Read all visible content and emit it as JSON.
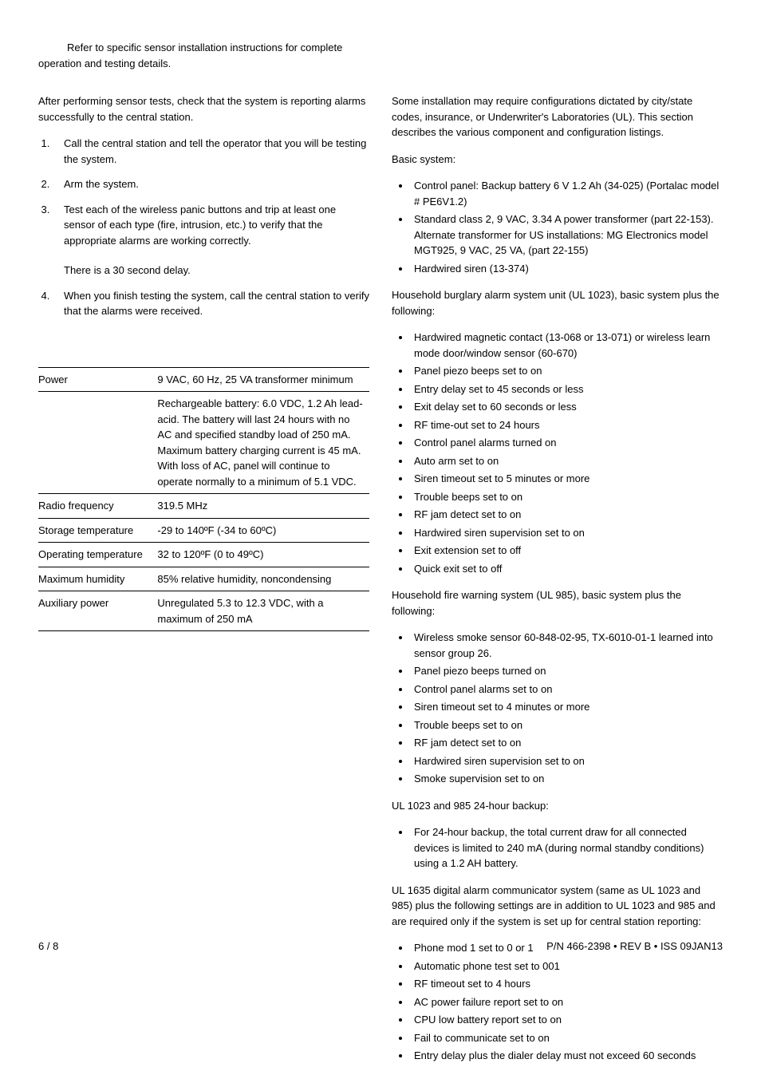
{
  "intro": {
    "line1": "Refer to specific sensor installation instructions for complete",
    "line2": "operation and testing details."
  },
  "left": {
    "p1": "After performing sensor tests, check that the system is reporting alarms successfully to the central station.",
    "steps": [
      "Call the central station and tell the operator that you will be testing the system.",
      "Arm the system.",
      "Test each of the wireless panic buttons and trip at least one sensor of each type (fire, intrusion, etc.) to verify that the appropriate alarms are working correctly.",
      "When you finish testing the system, call the central station to verify that the alarms were received."
    ],
    "delay_note": "There is a 30 second delay.",
    "spec_table": {
      "rows": [
        {
          "label": "Power",
          "value": "9 VAC, 60 Hz, 25 VA transformer minimum"
        },
        {
          "label": "",
          "value": "Rechargeable battery: 6.0 VDC, 1.2 Ah lead-acid. The battery will last 24 hours with no AC and specified standby load of 250 mA. Maximum battery charging current is 45 mA. With loss of AC, panel will continue to operate normally to a minimum of 5.1 VDC."
        },
        {
          "label": "Radio frequency",
          "value": "319.5 MHz"
        },
        {
          "label": "Storage temperature",
          "value": "-29 to 140ºF (-34 to 60ºC)"
        },
        {
          "label": "Operating temperature",
          "value": "32 to 120ºF (0 to 49ºC)"
        },
        {
          "label": "Maximum humidity",
          "value": "85% relative humidity, noncondensing"
        },
        {
          "label": "Auxiliary power",
          "value": "Unregulated 5.3 to 12.3 VDC, with a maximum of 250 mA"
        }
      ]
    }
  },
  "right": {
    "p1": "Some installation may require configurations dictated by city/state codes, insurance, or Underwriter's Laboratories (UL). This section describes the various component and configuration listings.",
    "basic_label": "Basic system:",
    "basic_items": [
      "Control panel: Backup battery 6 V 1.2 Ah (34-025) (Portalac model # PE6V1.2)",
      "Standard class 2, 9 VAC, 3.34 A power transformer (part 22-153). Alternate transformer for US installations: MG Electronics model MGT925, 9 VAC, 25 VA, (part 22-155)",
      "Hardwired siren (13-374)"
    ],
    "burglary_label": "Household burglary alarm system unit (UL 1023), basic system plus the following:",
    "burglary_items": [
      "Hardwired magnetic contact (13-068 or 13-071) or wireless learn mode door/window sensor (60-670)",
      "Panel piezo beeps set to on",
      "Entry delay set to 45 seconds or less",
      "Exit delay set to 60 seconds or less",
      "RF time-out set to 24 hours",
      "Control panel alarms turned on",
      "Auto arm set to on",
      "Siren timeout set to 5 minutes or more",
      "Trouble beeps set to on",
      "RF jam detect set to on",
      "Hardwired siren supervision set to on",
      "Exit extension set to off",
      "Quick exit set to off"
    ],
    "fire_label": "Household fire warning system (UL 985), basic system plus the following:",
    "fire_items": [
      "Wireless smoke sensor 60-848-02-95, TX-6010-01-1 learned into sensor group 26.",
      "Panel piezo beeps turned on",
      "Control panel alarms set to on",
      "Siren timeout set to 4 minutes or more",
      "Trouble beeps set to on",
      "RF jam detect set to on",
      "Hardwired siren supervision set to on",
      "Smoke supervision set to on"
    ],
    "backup_label": "UL 1023 and 985 24-hour backup:",
    "backup_items": [
      "For 24-hour backup, the total current draw for all connected devices is limited to 240 mA (during normal standby conditions) using a 1.2 AH battery."
    ],
    "digital_label": "UL 1635 digital alarm communicator system (same as UL 1023 and 985) plus the following settings are in addition to UL 1023 and 985 and are required only if the system is set up for central station reporting:",
    "digital_items": [
      "Phone mod 1 set to 0 or 1",
      "Automatic phone test set to 001",
      "RF timeout set to 4 hours",
      "AC power failure report set to on",
      "CPU low battery report set to on",
      "Fail to communicate set to on",
      "Entry delay plus the dialer delay must not exceed 60 seconds"
    ]
  },
  "footer": {
    "page": "6 / 8",
    "rev": "P/N 466-2398 • REV B • ISS 09JAN13"
  }
}
